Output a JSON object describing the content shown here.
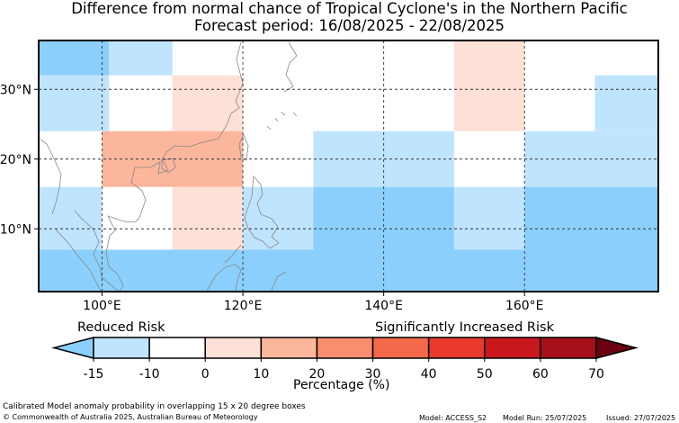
{
  "title": {
    "line1": "Difference from normal chance of Tropical Cyclone's in the Northern Pacific",
    "line2": "Forecast period: 16/08/2025 - 22/08/2025"
  },
  "map": {
    "lon_range": [
      91,
      179
    ],
    "lat_range": [
      1,
      37
    ],
    "lon_ticks": [
      {
        "value": 100,
        "label": "100°E"
      },
      {
        "value": 120,
        "label": "120°E"
      },
      {
        "value": 140,
        "label": "140°E"
      },
      {
        "value": 160,
        "label": "160°E"
      }
    ],
    "lat_ticks": [
      {
        "value": 10,
        "label": "10°N"
      },
      {
        "value": 20,
        "label": "20°N"
      },
      {
        "value": 30,
        "label": "30°N"
      }
    ],
    "grid": "dashed",
    "cells": [
      {
        "lon": [
          91,
          101
        ],
        "lat": [
          32,
          37
        ],
        "bin": "-15"
      },
      {
        "lon": [
          101,
          110
        ],
        "lat": [
          32,
          37
        ],
        "bin": "-10"
      },
      {
        "lon": [
          91,
          101
        ],
        "lat": [
          24,
          32
        ],
        "bin": "-10"
      },
      {
        "lon": [
          110,
          120
        ],
        "lat": [
          24,
          32
        ],
        "bin": "0"
      },
      {
        "lon": [
          150,
          160
        ],
        "lat": [
          24,
          37
        ],
        "bin": "0"
      },
      {
        "lon": [
          170,
          179
        ],
        "lat": [
          24,
          32
        ],
        "bin": "-10"
      },
      {
        "lon": [
          100,
          120
        ],
        "lat": [
          16,
          24
        ],
        "bin": "10"
      },
      {
        "lon": [
          130,
          150
        ],
        "lat": [
          16,
          24
        ],
        "bin": "-10"
      },
      {
        "lon": [
          160,
          170
        ],
        "lat": [
          16,
          24
        ],
        "bin": "-10"
      },
      {
        "lon": [
          170,
          179
        ],
        "lat": [
          16,
          24
        ],
        "bin": "-10"
      },
      {
        "lon": [
          91,
          100
        ],
        "lat": [
          7,
          16
        ],
        "bin": "-10"
      },
      {
        "lon": [
          110,
          120
        ],
        "lat": [
          7,
          16
        ],
        "bin": "0"
      },
      {
        "lon": [
          120,
          130
        ],
        "lat": [
          7,
          16
        ],
        "bin": "-10"
      },
      {
        "lon": [
          130,
          150
        ],
        "lat": [
          7,
          16
        ],
        "bin": "-15"
      },
      {
        "lon": [
          150,
          160
        ],
        "lat": [
          7,
          16
        ],
        "bin": "-10"
      },
      {
        "lon": [
          160,
          179
        ],
        "lat": [
          7,
          16
        ],
        "bin": "-15"
      },
      {
        "lon": [
          91,
          179
        ],
        "lat": [
          1,
          7
        ],
        "bin": "-15"
      }
    ]
  },
  "legend": {
    "reduced_label": "Reduced Risk",
    "increased_label": "Significantly Increased Risk",
    "axis_label": "Percentage (%)",
    "bins": [
      {
        "from": "-15",
        "to": "-10",
        "color": "#bfe4fd"
      },
      {
        "from": "-10",
        "to": "0",
        "color": "#ffffff"
      },
      {
        "from": "0",
        "to": "10",
        "color": "#fde0d6"
      },
      {
        "from": "10",
        "to": "20",
        "color": "#fbb69c"
      },
      {
        "from": "20",
        "to": "30",
        "color": "#f98e6f"
      },
      {
        "from": "30",
        "to": "40",
        "color": "#f3694a"
      },
      {
        "from": "40",
        "to": "50",
        "color": "#e93a2b"
      },
      {
        "from": "50",
        "to": "60",
        "color": "#c8171d"
      },
      {
        "from": "60",
        "to": "70",
        "color": "#a5101a"
      }
    ],
    "under_color": "#8bd0fd",
    "over_color": "#6b0012",
    "tick_labels": [
      "-15",
      "-10",
      "0",
      "10",
      "20",
      "30",
      "40",
      "50",
      "60",
      "70"
    ]
  },
  "cell_colors": {
    "-15": "#8bd0fd",
    "-10": "#bfe4fd",
    "0": "#fde0d6",
    "10": "#fbb69c"
  },
  "footer": {
    "desc": "Calibrated Model anomaly probability in overlapping 15 x 20 degree boxes",
    "copyright": "© Commonwealth of Australia 2025, Australian Bureau of Meteorology",
    "model": "Model: ACCESS_S2",
    "run": "Model Run: 25/07/2025",
    "issued": "Issued: 27/07/2025"
  }
}
